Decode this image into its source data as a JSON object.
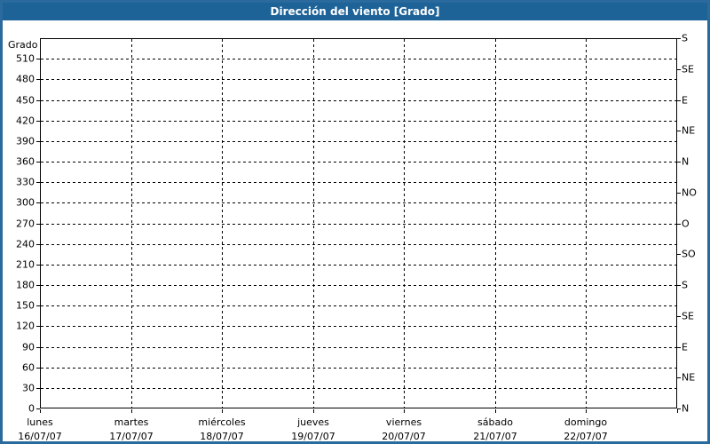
{
  "window": {
    "title": "Dirección del viento [Grado]"
  },
  "colors": {
    "title_bar": "#1e6398",
    "title_text": "#ffffff",
    "outer_border": "#2a6a9c",
    "plot_border": "#000000",
    "grid": "#000000",
    "text": "#000000",
    "background": "#ffffff"
  },
  "chart_data": {
    "type": "line",
    "title": "Dirección del viento [Grado]",
    "y_axis_left": {
      "label": "Grado",
      "min": 0,
      "max": 540,
      "tick_interval": 30,
      "tick_labels": [
        "510",
        "480",
        "450",
        "420",
        "390",
        "360",
        "330",
        "300",
        "270",
        "240",
        "210",
        "180",
        "150",
        "120",
        "90",
        "60",
        "30",
        "0"
      ]
    },
    "y_axis_right": {
      "tick_interval": 45,
      "labels_top_to_bottom": [
        "S",
        "SE",
        "E",
        "NE",
        "N",
        "NO",
        "O",
        "SO",
        "S",
        "SE",
        "E",
        "NE",
        "N"
      ]
    },
    "x_axis": {
      "categories": [
        {
          "day": "lunes",
          "date": "16/07/07"
        },
        {
          "day": "martes",
          "date": "17/07/07"
        },
        {
          "day": "miércoles",
          "date": "18/07/07"
        },
        {
          "day": "jueves",
          "date": "19/07/07"
        },
        {
          "day": "viernes",
          "date": "20/07/07"
        },
        {
          "day": "sábado",
          "date": "21/07/07"
        },
        {
          "day": "domingo",
          "date": "22/07/07"
        }
      ]
    },
    "series": [],
    "grid": {
      "style": "dashed",
      "color": "#000000"
    },
    "legend": "none"
  }
}
